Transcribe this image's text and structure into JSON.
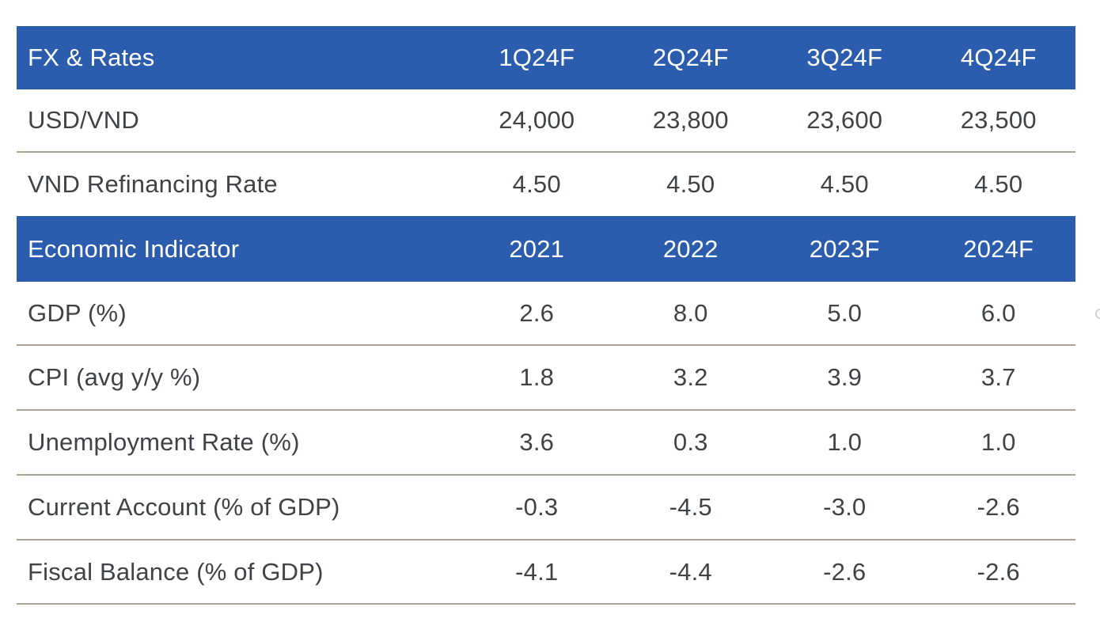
{
  "colors": {
    "header_bg": "#2b5cad",
    "header_text": "#ffffff",
    "body_text": "#3f4347",
    "divider": "#aca295",
    "background": "#ffffff"
  },
  "tables": {
    "fx_rates": {
      "header": {
        "label": "FX & Rates",
        "columns": [
          "1Q24F",
          "2Q24F",
          "3Q24F",
          "4Q24F"
        ]
      },
      "rows": [
        {
          "label": "USD/VND",
          "values": [
            "24,000",
            "23,800",
            "23,600",
            "23,500"
          ]
        },
        {
          "label": "VND Refinancing Rate",
          "values": [
            "4.50",
            "4.50",
            "4.50",
            "4.50"
          ]
        }
      ]
    },
    "economic": {
      "header": {
        "label": "Economic Indicator",
        "columns": [
          "2021",
          "2022",
          "2023F",
          "2024F"
        ]
      },
      "rows": [
        {
          "label": "GDP (%)",
          "values": [
            "2.6",
            "8.0",
            "5.0",
            "6.0"
          ]
        },
        {
          "label": "CPI (avg y/y %)",
          "values": [
            "1.8",
            "3.2",
            "3.9",
            "3.7"
          ]
        },
        {
          "label": "Unemployment Rate (%)",
          "values": [
            "3.6",
            "0.3",
            "1.0",
            "1.0"
          ]
        },
        {
          "label": "Current Account (% of GDP)",
          "values": [
            "-0.3",
            "-4.5",
            "-3.0",
            "-2.6"
          ]
        },
        {
          "label": "Fiscal Balance (% of GDP)",
          "values": [
            "-4.1",
            "-4.4",
            "-2.6",
            "-2.6"
          ]
        }
      ]
    }
  },
  "chart_data": [
    {
      "type": "table",
      "title": "FX & Rates",
      "categories": [
        "1Q24F",
        "2Q24F",
        "3Q24F",
        "4Q24F"
      ],
      "series": [
        {
          "name": "USD/VND",
          "values": [
            24000,
            23800,
            23600,
            23500
          ]
        },
        {
          "name": "VND Refinancing Rate",
          "values": [
            4.5,
            4.5,
            4.5,
            4.5
          ]
        }
      ]
    },
    {
      "type": "table",
      "title": "Economic Indicator",
      "categories": [
        "2021",
        "2022",
        "2023F",
        "2024F"
      ],
      "series": [
        {
          "name": "GDP (%)",
          "values": [
            2.6,
            8.0,
            5.0,
            6.0
          ]
        },
        {
          "name": "CPI (avg y/y %)",
          "values": [
            1.8,
            3.2,
            3.9,
            3.7
          ]
        },
        {
          "name": "Unemployment Rate (%)",
          "values": [
            3.6,
            0.3,
            1.0,
            1.0
          ]
        },
        {
          "name": "Current Account (% of GDP)",
          "values": [
            -0.3,
            -4.5,
            -3.0,
            -2.6
          ]
        },
        {
          "name": "Fiscal Balance (% of GDP)",
          "values": [
            -4.1,
            -4.4,
            -2.6,
            -2.6
          ]
        }
      ]
    }
  ]
}
